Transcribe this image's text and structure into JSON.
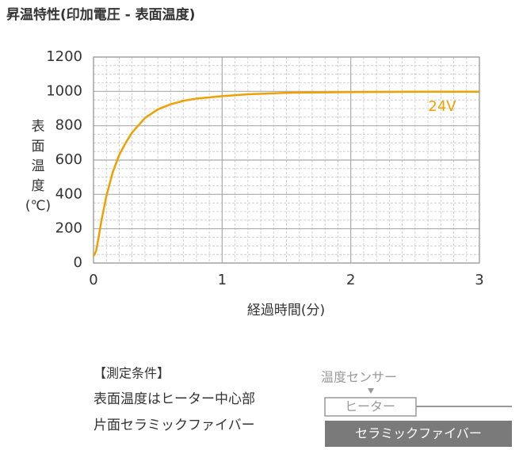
{
  "chart_data": {
    "type": "line",
    "title": "昇温特性(印加電圧 - 表面温度)",
    "y_label": "表面温度(℃)",
    "x_label": "経過時間(分)",
    "xlim": [
      0,
      3
    ],
    "xticks": [
      0,
      1,
      2,
      3
    ],
    "ylim": [
      0,
      1200
    ],
    "yticks": [
      0,
      200,
      400,
      600,
      800,
      1000,
      1200
    ],
    "grid": true,
    "minor_grid": true,
    "x": [
      0,
      0.02,
      0.04,
      0.06,
      0.1,
      0.15,
      0.2,
      0.25,
      0.3,
      0.4,
      0.5,
      0.6,
      0.7,
      0.8,
      1.0,
      1.2,
      1.5,
      2.0,
      2.5,
      3.0
    ],
    "series": [
      {
        "name": "24V",
        "color": "#f0a000",
        "values": [
          40,
          70,
          150,
          240,
          390,
          530,
          630,
          700,
          760,
          845,
          895,
          925,
          945,
          958,
          972,
          983,
          992,
          996,
          998,
          998
        ]
      }
    ]
  },
  "conditions": {
    "heading": "【測定条件】",
    "lines": [
      "表面温度はヒーター中心部",
      "片面セラミックファイバー"
    ]
  },
  "diagram": {
    "sensor": "温度センサー",
    "heater": "ヒーター",
    "fiber": "セラミックファイバー"
  }
}
